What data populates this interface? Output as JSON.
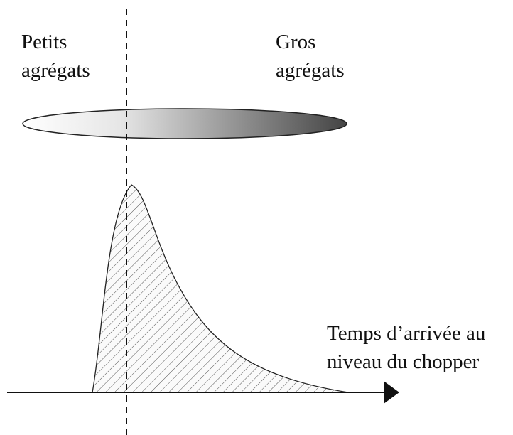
{
  "left_label": [
    "Petits",
    "agrégats"
  ],
  "right_label": [
    "Gros",
    "agrégats"
  ],
  "axis_label": [
    "Temps d’arrivée au",
    "niveau du chopper"
  ]
}
